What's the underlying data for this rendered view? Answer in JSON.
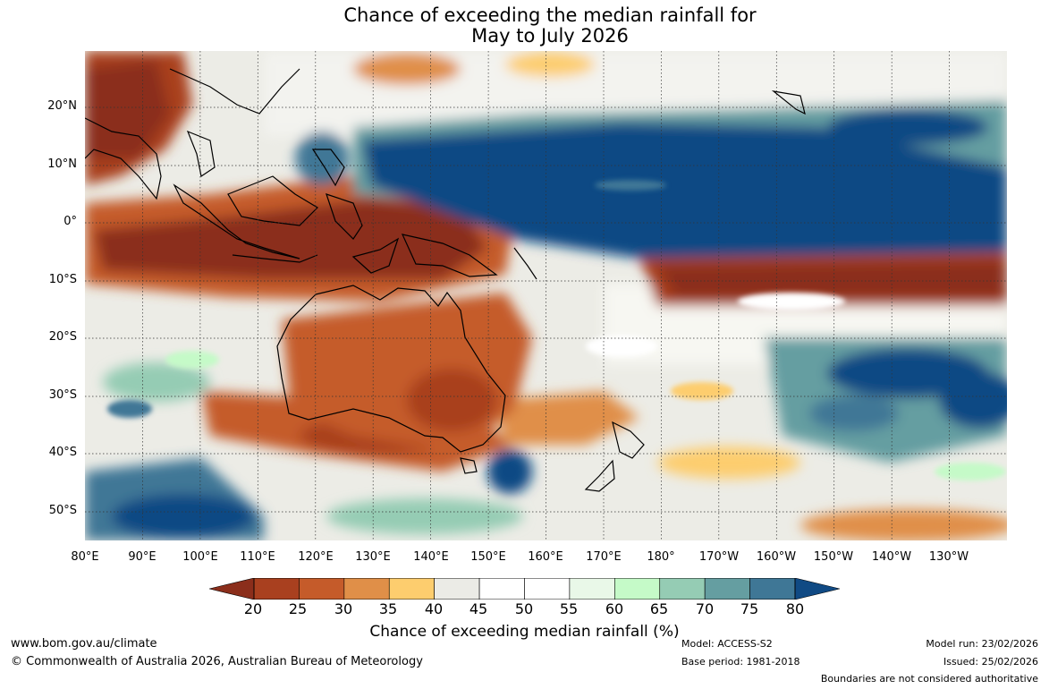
{
  "title": [
    "Chance of exceeding the median rainfall for",
    "May to July 2026"
  ],
  "lat_labels": [
    "20°N",
    "10°N",
    "0°",
    "10°S",
    "20°S",
    "30°S",
    "40°S",
    "50°S"
  ],
  "lon_labels": [
    "80°E",
    "90°E",
    "100°E",
    "110°E",
    "120°E",
    "130°E",
    "140°E",
    "150°E",
    "160°E",
    "170°E",
    "180°",
    "170°W",
    "160°W",
    "150°W",
    "140°W",
    "130°W"
  ],
  "colorbar": {
    "label": "Chance of exceeding median rainfall (%)",
    "ticks": [
      "20",
      "25",
      "30",
      "35",
      "40",
      "45",
      "50",
      "55",
      "60",
      "65",
      "70",
      "75",
      "80"
    ],
    "under_color": "#8b2e1b",
    "over_color": "#104a84",
    "colors": [
      "#a9401f",
      "#c55b2a",
      "#e08f48",
      "#fdcd6e",
      "#ebebe6",
      "#ffffff",
      "#ffffff",
      "#e9f8e8",
      "#c5fac8",
      "#95ccb4",
      "#659ea1",
      "#3f7796"
    ]
  },
  "footer": {
    "website": "www.bom.gov.au/climate",
    "copyright": "© Commonwealth of Australia 2026, Australian Bureau of Meteorology",
    "model": "Model: ACCESS-S2",
    "base_period": "Base period: 1981-2018",
    "model_run": "Model run: 23/02/2026",
    "issued": "Issued: 25/02/2026",
    "disclaimer": "Boundaries are not considered authoritative"
  }
}
